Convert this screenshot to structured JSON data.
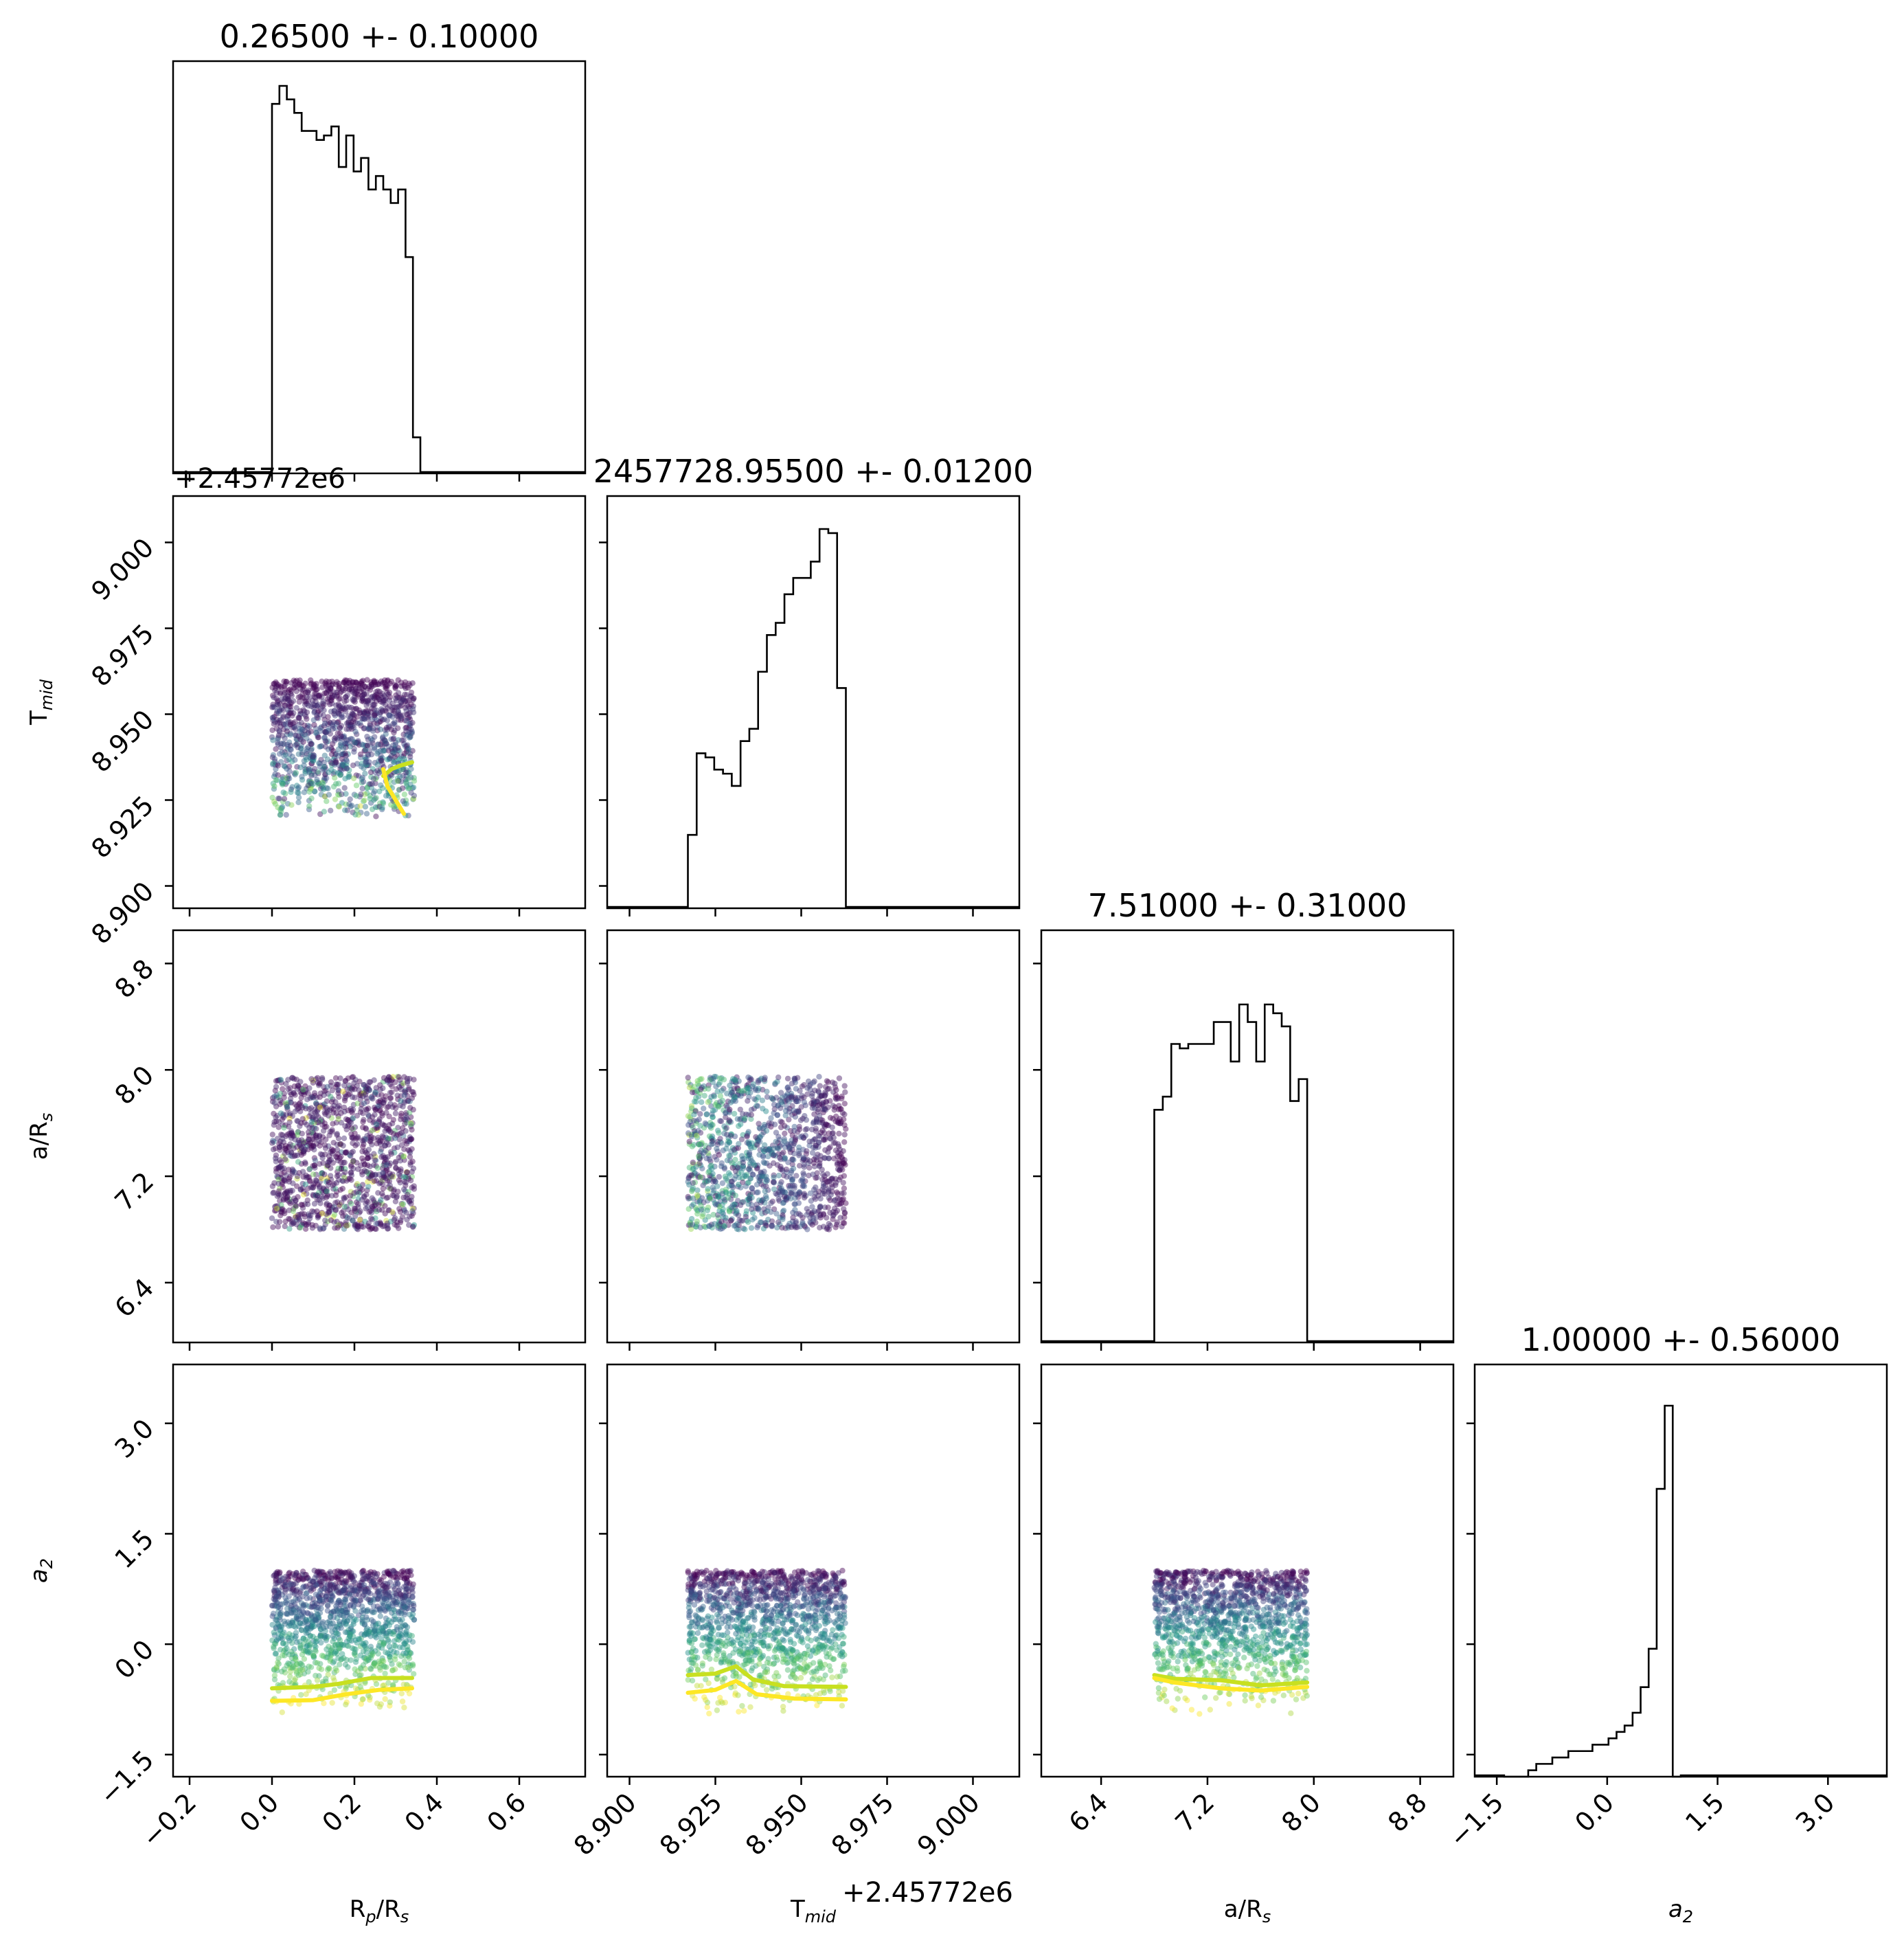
{
  "chart_data": {
    "type": "corner",
    "parameters": [
      {
        "key": "rp",
        "label_main": "R",
        "label_sub": "p",
        "label_tail": "/R",
        "label_tail_sub": "s",
        "range": [
          -0.24,
          0.76
        ],
        "ticks": [
          "−0.2",
          "0.0",
          "0.2",
          "0.4",
          "0.6"
        ],
        "tick_values": [
          -0.2,
          0.0,
          0.2,
          0.4,
          0.6
        ],
        "title": "0.26500 +- 0.10000",
        "offset": ""
      },
      {
        "key": "tmid",
        "label_main": "T",
        "label_sub": "mid",
        "label_tail": "",
        "label_tail_sub": "",
        "range": [
          8.8935,
          9.0135
        ],
        "ticks": [
          "8.900",
          "8.925",
          "8.950",
          "8.975",
          "9.000"
        ],
        "tick_values": [
          8.9,
          8.925,
          8.95,
          8.975,
          9.0
        ],
        "title": "2457728.95500 +- 0.01200",
        "offset": "+2.45772e6"
      },
      {
        "key": "ars",
        "label_main": "a/R",
        "label_sub": "s",
        "label_tail": "",
        "label_tail_sub": "",
        "range": [
          5.95,
          9.05
        ],
        "ticks": [
          "6.4",
          "7.2",
          "8.0",
          "8.8"
        ],
        "tick_values": [
          6.4,
          7.2,
          8.0,
          8.8
        ],
        "title": "7.51000 +- 0.31000",
        "offset": ""
      },
      {
        "key": "a2",
        "label_main": "a",
        "label_sub": "2",
        "label_tail": "",
        "label_tail_sub": "",
        "label_italic": true,
        "range": [
          -1.8,
          3.8
        ],
        "ticks": [
          "−1.5",
          "0.0",
          "1.5",
          "3.0"
        ],
        "tick_values": [
          -1.5,
          0.0,
          1.5,
          3.0
        ],
        "title": "1.00000 +- 0.56000",
        "offset": ""
      }
    ],
    "histograms": [
      {
        "edges_from": 0.0,
        "edges_to": 0.36,
        "counts": [
          82,
          86,
          83,
          80,
          76,
          76,
          74,
          75,
          77,
          68,
          75,
          67,
          70,
          63,
          66,
          63,
          60,
          63,
          48,
          8
        ]
      },
      {
        "edges_from": 8.917,
        "edges_to": 8.963,
        "counts": [
          18,
          38,
          37,
          34,
          33,
          30,
          41,
          44,
          58,
          67,
          70,
          77,
          81,
          81,
          85,
          93,
          92,
          54
        ]
      },
      {
        "edges_from": 6.8,
        "edges_to": 7.95,
        "counts": [
          53,
          56,
          68,
          67,
          68,
          68,
          68,
          73,
          73,
          64,
          77,
          73,
          64,
          77,
          75,
          72,
          55,
          60
        ]
      },
      {
        "edges_from": -1.4,
        "edges_to": 1.0,
        "counts": [
          0,
          0,
          0,
          1,
          2,
          2,
          3,
          3,
          4,
          4,
          4,
          5,
          5,
          6,
          7,
          8,
          10,
          14,
          20,
          45,
          58,
          0
        ]
      }
    ],
    "hist_tops": [
      0.94,
      0.92,
      0.82,
      0.9
    ],
    "scatter": {
      "colormap": "viridis",
      "panels": [
        {
          "x": "rp",
          "y": "tmid",
          "x_range": [
            0.0,
            0.345
          ],
          "y_range": [
            8.92,
            8.96
          ]
        },
        {
          "x": "rp",
          "y": "ars",
          "x_range": [
            0.0,
            0.345
          ],
          "y_range": [
            6.8,
            7.95
          ]
        },
        {
          "x": "tmid",
          "y": "ars",
          "x_range": [
            8.917,
            8.963
          ],
          "y_range": [
            6.8,
            7.95
          ]
        },
        {
          "x": "rp",
          "y": "a2",
          "x_range": [
            0.0,
            0.345
          ],
          "y_range": [
            -0.95,
            1.0
          ]
        },
        {
          "x": "tmid",
          "y": "a2",
          "x_range": [
            8.917,
            8.963
          ],
          "y_range": [
            -0.95,
            1.0
          ]
        },
        {
          "x": "ars",
          "y": "a2",
          "x_range": [
            6.8,
            7.95
          ],
          "y_range": [
            -0.95,
            1.0
          ]
        }
      ]
    },
    "contours": [
      {
        "panel": "rp-tmid",
        "color": "#c8e020",
        "points": [
          [
            0.27,
            8.932
          ],
          [
            0.29,
            8.934
          ],
          [
            0.31,
            8.935
          ],
          [
            0.34,
            8.936
          ]
        ]
      },
      {
        "panel": "rp-tmid",
        "color": "#fde725",
        "points": [
          [
            0.27,
            8.934
          ],
          [
            0.28,
            8.929
          ],
          [
            0.3,
            8.925
          ],
          [
            0.32,
            8.921
          ]
        ]
      },
      {
        "panel": "rp-a2",
        "color": "#c8e020",
        "points": [
          [
            0.0,
            -0.6
          ],
          [
            0.1,
            -0.58
          ],
          [
            0.16,
            -0.54
          ],
          [
            0.24,
            -0.46
          ],
          [
            0.34,
            -0.46
          ]
        ]
      },
      {
        "panel": "rp-a2",
        "color": "#fde725",
        "points": [
          [
            0.0,
            -0.77
          ],
          [
            0.1,
            -0.76
          ],
          [
            0.18,
            -0.68
          ],
          [
            0.26,
            -0.62
          ],
          [
            0.34,
            -0.6
          ]
        ]
      },
      {
        "panel": "tmid-a2",
        "color": "#c8e020",
        "points": [
          [
            8.917,
            -0.42
          ],
          [
            8.925,
            -0.4
          ],
          [
            8.931,
            -0.3
          ],
          [
            8.936,
            -0.48
          ],
          [
            8.945,
            -0.57
          ],
          [
            8.963,
            -0.58
          ]
        ]
      },
      {
        "panel": "tmid-a2",
        "color": "#fde725",
        "points": [
          [
            8.917,
            -0.66
          ],
          [
            8.925,
            -0.62
          ],
          [
            8.931,
            -0.5
          ],
          [
            8.937,
            -0.68
          ],
          [
            8.948,
            -0.74
          ],
          [
            8.963,
            -0.75
          ]
        ]
      },
      {
        "panel": "ars-a2",
        "color": "#c8e020",
        "points": [
          [
            6.8,
            -0.42
          ],
          [
            6.95,
            -0.47
          ],
          [
            7.3,
            -0.49
          ],
          [
            7.6,
            -0.56
          ],
          [
            7.95,
            -0.52
          ]
        ]
      },
      {
        "panel": "ars-a2",
        "color": "#fde725",
        "points": [
          [
            6.8,
            -0.46
          ],
          [
            6.95,
            -0.52
          ],
          [
            7.3,
            -0.6
          ],
          [
            7.6,
            -0.63
          ],
          [
            7.95,
            -0.58
          ]
        ]
      }
    ]
  }
}
